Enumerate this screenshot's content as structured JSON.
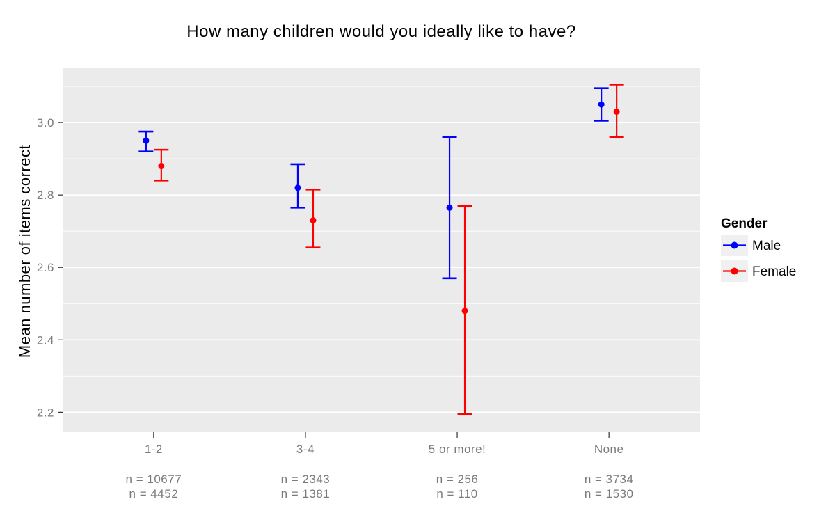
{
  "title": "How many children would you ideally like to have?",
  "chart_data": {
    "type": "scatter",
    "subtype": "dodged point estimates with error bars (ggplot2 theme_grey style)",
    "title": "How many children would you ideally like to have?",
    "xlabel": "",
    "ylabel": "Mean number of items correct",
    "categories": [
      "1-2",
      "3-4",
      "5 or more!",
      "None"
    ],
    "series": [
      {
        "name": "Male",
        "color": "#0000ff",
        "values": [
          2.95,
          2.82,
          2.765,
          3.05
        ],
        "ci_low": [
          2.92,
          2.765,
          2.57,
          3.005
        ],
        "ci_high": [
          2.975,
          2.885,
          2.96,
          3.095
        ],
        "n": [
          10677,
          2343,
          256,
          3734
        ],
        "n_labels": [
          "n = 10677",
          "n = 2343",
          "n = 256",
          "n = 3734"
        ]
      },
      {
        "name": "Female",
        "color": "#ff0000",
        "values": [
          2.88,
          2.73,
          2.48,
          3.03
        ],
        "ci_low": [
          2.84,
          2.655,
          2.195,
          2.96
        ],
        "ci_high": [
          2.925,
          2.815,
          2.77,
          3.105
        ],
        "n": [
          4452,
          1381,
          110,
          1530
        ],
        "n_labels": [
          "n = 4452",
          "n = 1381",
          "n = 110",
          "n = 1530"
        ]
      }
    ],
    "y_ticks": [
      3.0,
      2.8,
      2.6,
      2.4,
      2.2
    ],
    "y_tick_labels": [
      "3.0",
      "2.8",
      "2.6",
      "2.4",
      "2.2"
    ],
    "y_minor_ticks": [
      3.1,
      2.9,
      2.7,
      2.5,
      2.3
    ],
    "ylim": [
      2.145,
      3.152
    ],
    "grid": "on",
    "legend_position": "right",
    "legend_title": "Gender",
    "colors": {
      "panel_bg": "#ebebeb",
      "gridline": "#ffffff",
      "axis_text": "#7b7b7b",
      "tick_mark": "#333333",
      "legend_key_bg": "#f0f0f0"
    }
  }
}
